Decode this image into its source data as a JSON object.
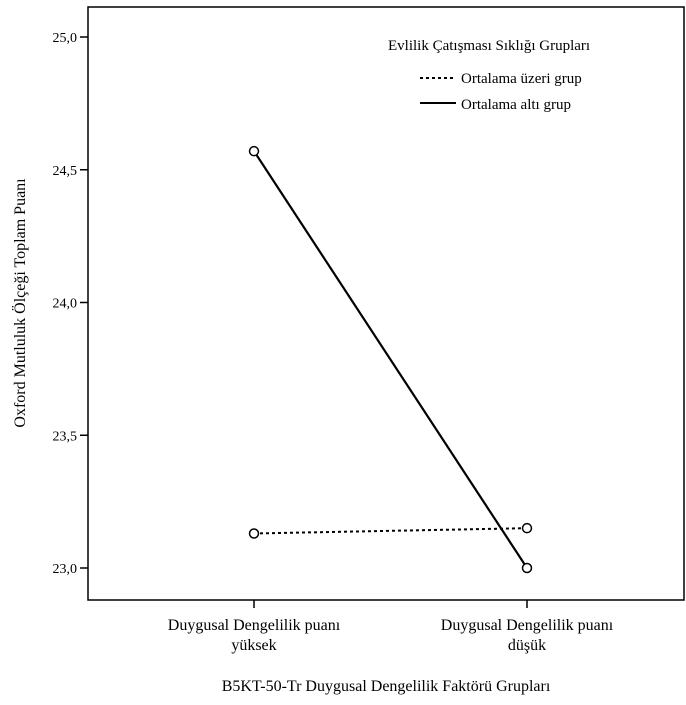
{
  "chart_data": {
    "type": "line",
    "xlabel": "B5KT-50-Tr Duygusal Dengelilik Faktörü Grupları",
    "ylabel": "Oxford Mutluluk Ölçeği Toplam Puanı",
    "categories": [
      [
        "Duygusal Dengelilik puanı",
        "yüksek"
      ],
      [
        "Duygusal Dengelilik puanı",
        "düşük"
      ]
    ],
    "ylim": [
      22.9,
      25.1
    ],
    "yticks": [
      23.0,
      23.5,
      24.0,
      24.5,
      25.0
    ],
    "ytick_labels": [
      "23,0",
      "23,5",
      "24,0",
      "24,5",
      "25,0"
    ],
    "grid": false,
    "legend": {
      "title": "Evlilik Çatışması Sıklığı Grupları",
      "placement": "top-right"
    },
    "series": [
      {
        "name": "Ortalama üzeri grup",
        "values": [
          23.13,
          23.15
        ],
        "line_style": "dashed",
        "color": "#000000"
      },
      {
        "name": "Ortalama altı grup",
        "values": [
          24.57,
          23.0
        ],
        "line_style": "solid",
        "color": "#000000"
      }
    ]
  }
}
